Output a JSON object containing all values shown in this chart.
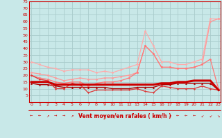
{
  "xlabel": "Vent moyen/en rafales ( km/h )",
  "bg_color": "#c8e8e8",
  "grid_color": "#b0d8d8",
  "ylim": [
    0,
    75
  ],
  "yticks": [
    5,
    10,
    15,
    20,
    25,
    30,
    35,
    40,
    45,
    50,
    55,
    60,
    65,
    70,
    75
  ],
  "xlim": [
    -0.3,
    23.3
  ],
  "xticks": [
    0,
    1,
    2,
    3,
    4,
    5,
    6,
    7,
    8,
    9,
    10,
    11,
    12,
    13,
    14,
    15,
    16,
    17,
    18,
    19,
    20,
    21,
    22,
    23
  ],
  "lines": [
    {
      "comment": "light pink top line - rafales max, starts ~30, rises to ~62",
      "y": [
        30,
        28,
        26,
        25,
        23,
        24,
        24,
        24,
        22,
        23,
        22,
        24,
        26,
        28,
        53,
        42,
        30,
        30,
        28,
        28,
        30,
        32,
        62,
        62
      ],
      "color": "#ffaaaa",
      "lw": 0.9,
      "marker": "o",
      "ms": 2.0,
      "zorder": 2
    },
    {
      "comment": "medium pink line - second from top, slow rise",
      "y": [
        22,
        21,
        20,
        18,
        16,
        17,
        18,
        17,
        17,
        18,
        18,
        19,
        20,
        22,
        42,
        36,
        26,
        26,
        25,
        25,
        26,
        28,
        60,
        62
      ],
      "color": "#ff9999",
      "lw": 0.9,
      "marker": "o",
      "ms": 2.0,
      "zorder": 3
    },
    {
      "comment": "medium-dark pink - third line with big peak at 14",
      "y": [
        20,
        18,
        17,
        15,
        14,
        15,
        15,
        12,
        14,
        15,
        15,
        16,
        18,
        22,
        42,
        36,
        26,
        26,
        25,
        25,
        26,
        28,
        32,
        10
      ],
      "color": "#ff7777",
      "lw": 0.9,
      "marker": "o",
      "ms": 2.0,
      "zorder": 3
    },
    {
      "comment": "dark red thick line - mean wind, nearly flat ~15",
      "y": [
        15,
        15,
        15,
        13,
        13,
        13,
        13,
        13,
        13,
        13,
        13,
        13,
        13,
        13,
        13,
        13,
        14,
        14,
        15,
        15,
        16,
        16,
        16,
        9
      ],
      "color": "#cc0000",
      "lw": 2.2,
      "marker": "s",
      "ms": 1.5,
      "zorder": 5
    },
    {
      "comment": "dark red thin - slightly below thick",
      "y": [
        14,
        13,
        13,
        12,
        11,
        11,
        11,
        11,
        11,
        11,
        10,
        10,
        10,
        11,
        11,
        11,
        13,
        13,
        14,
        14,
        14,
        14,
        14,
        9
      ],
      "color": "#aa0000",
      "lw": 1.0,
      "marker": "^",
      "ms": 2.0,
      "zorder": 4
    },
    {
      "comment": "red line that dips low at center, small markers",
      "y": [
        20,
        17,
        16,
        10,
        10,
        14,
        13,
        7,
        9,
        9,
        9,
        9,
        9,
        10,
        8,
        7,
        12,
        11,
        10,
        10,
        10,
        12,
        10,
        9
      ],
      "color": "#dd3333",
      "lw": 0.9,
      "marker": "D",
      "ms": 1.5,
      "zorder": 4
    }
  ],
  "wind_arrows": [
    "←",
    "←",
    "↗",
    "→",
    "→",
    "↗",
    "↗",
    "↑",
    "←",
    "←",
    "↗",
    "↗",
    "↑",
    "↑",
    "↑",
    "↗",
    "↑",
    "↗",
    "←",
    "←",
    "←",
    "↙",
    "↙",
    "↘"
  ]
}
